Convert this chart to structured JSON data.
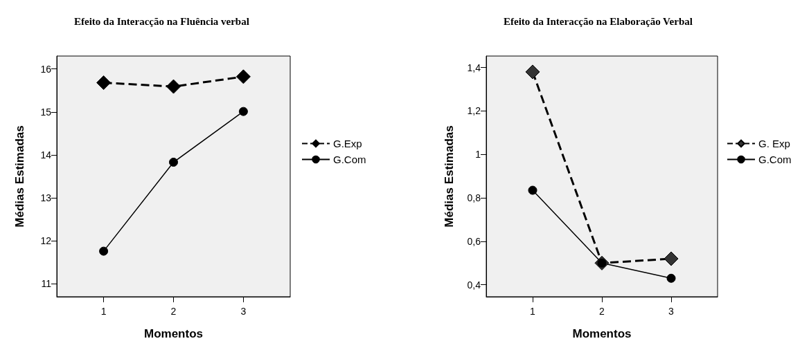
{
  "chart_data": [
    {
      "type": "line",
      "title": "Efeito da Interacção na Fluência verbal",
      "xlabel": "Momentos",
      "ylabel": "Médias Estimadas",
      "x": [
        1,
        2,
        3
      ],
      "xlim": [
        0.33,
        3.67
      ],
      "xticks": [
        1,
        2,
        3
      ],
      "ylim": [
        10.7,
        16.3
      ],
      "yticks": [
        11,
        12,
        13,
        14,
        15,
        16
      ],
      "grid": false,
      "legend": "right",
      "series": [
        {
          "name": "G.Exp",
          "color": "#000000",
          "values": [
            15.68,
            15.59,
            15.82
          ],
          "marker": "diamond",
          "line_style": "dashed"
        },
        {
          "name": "G.Com",
          "color": "#000000",
          "values": [
            11.76,
            13.83,
            15.01
          ],
          "marker": "circle",
          "line_style": "solid"
        }
      ]
    },
    {
      "type": "line",
      "title": "Efeito da Interacção na Elaboração Verbal",
      "xlabel": "Momentos",
      "ylabel": "Médias Estimadas",
      "x": [
        1,
        2,
        3
      ],
      "xlim": [
        0.33,
        3.67
      ],
      "xticks": [
        1,
        2,
        3
      ],
      "ylim": [
        0.345,
        1.453
      ],
      "yticks": [
        {
          "value": 0.4,
          "label": "0,4"
        },
        {
          "value": 0.6,
          "label": "0,6"
        },
        {
          "value": 0.8,
          "label": "0,8"
        },
        1,
        {
          "value": 1.2,
          "label": "1,2"
        },
        {
          "value": 1.4,
          "label": "1,4"
        }
      ],
      "grid": false,
      "legend": "right",
      "series": [
        {
          "name": "G. Exp",
          "color": "#333333",
          "values": [
            1.38,
            0.5,
            0.52
          ],
          "marker": "diamond",
          "line_style": "dashed"
        },
        {
          "name": "G.Com",
          "color": "#000000",
          "values": [
            0.835,
            0.5,
            0.43
          ],
          "marker": "circle",
          "line_style": "solid"
        }
      ]
    }
  ]
}
